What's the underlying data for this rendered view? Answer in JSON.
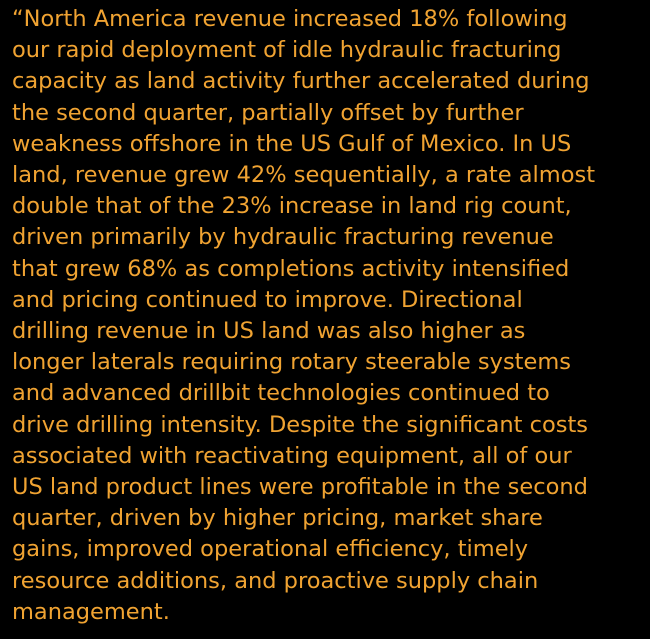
{
  "quote": {
    "lines": [
      "“North America revenue increased 18% following",
      "our rapid deployment of idle hydraulic fracturing",
      "capacity as land activity further accelerated during",
      "the second quarter, partially offset by further",
      "weakness offshore in the US Gulf of Mexico. In US",
      "land, revenue grew 42% sequentially, a rate almost",
      "double that of the 23% increase in land rig count,",
      "driven primarily by hydraulic fracturing revenue",
      "that grew 68% as completions activity intensified",
      "and pricing continued to improve. Directional",
      "drilling revenue in US land was also higher as",
      "longer laterals requiring rotary steerable systems",
      "and advanced drillbit technologies continued to",
      "drive drilling intensity. Despite the significant costs",
      "associated with reactivating equipment, all of our",
      "US land product lines were profitable in the second",
      "quarter, driven by higher pricing, market share",
      "gains, improved operational efficiency, timely",
      "resource additions, and proactive supply chain",
      "management."
    ]
  }
}
